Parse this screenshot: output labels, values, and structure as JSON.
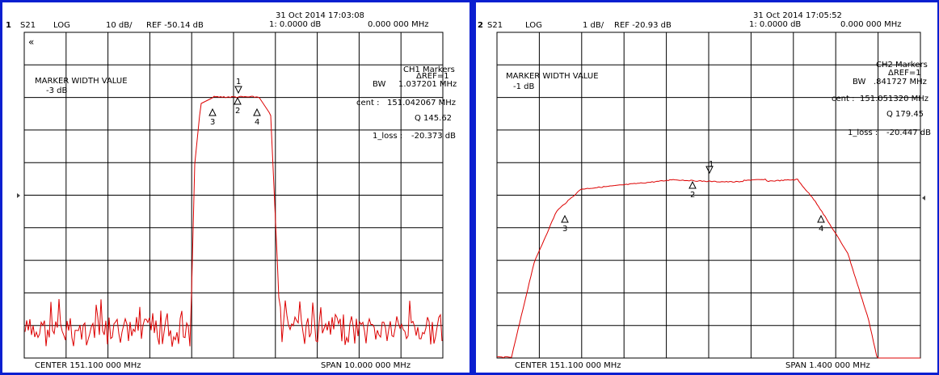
{
  "colors": {
    "frame": "#0a1fd0",
    "trace": "#dd0000",
    "grid": "#000000"
  },
  "ch1": {
    "chan": "1",
    "param": "S21",
    "format": "LOG",
    "scale": "10 dB/",
    "ref": "REF -50.14 dB",
    "datetime": "31 Oct 2014  17:03:08",
    "marker1": "1:  0.0000  dB",
    "marker1_freq": "0.000 000 MHz",
    "small_mark": "«",
    "mw_title": "MARKER WIDTH VALUE",
    "mw_value": "-3 dB",
    "markers_title": "CH1 Markers",
    "ref_label": "ΔREF=1",
    "bw_label": "BW",
    "bw_value": "1.037201 MHz",
    "cent_label": "cent :",
    "cent_value": "151.042067 MHz",
    "q_value": "Q  145.62",
    "loss_label": "1_loss  :",
    "loss_value": "-20.373 dB",
    "center": "CENTER 151.100 000 MHz",
    "span": "SPAN  10.000 000 MHz",
    "marker_nums": [
      "1",
      "2",
      "3",
      "4"
    ]
  },
  "ch2": {
    "chan": "2",
    "param": "S21",
    "format": "LOG",
    "scale": "1 dB/",
    "ref": "REF -20.93 dB",
    "datetime": "31 Oct 2014  17:05:52",
    "marker1": "1:  0.0000  dB",
    "marker1_freq": "0.000 000 MHz",
    "mw_title": "MARKER WIDTH VALUE",
    "mw_value": "-1 dB",
    "markers_title": "CH2 Markers",
    "ref_label": "ΔREF=1",
    "bw_label": "BW",
    "bw_value": ".841727 MHz",
    "cent_label": "cent :",
    "cent_value": "151.051320 MHz",
    "q_value": "Q  179.45",
    "loss_label": "1_loss  :",
    "loss_value": "-20.447 dB",
    "center": "CENTER 151.100 000 MHz",
    "span": "SPAN  1.400 000 MHz",
    "marker_nums": [
      "1",
      "2",
      "3",
      "4"
    ]
  }
}
